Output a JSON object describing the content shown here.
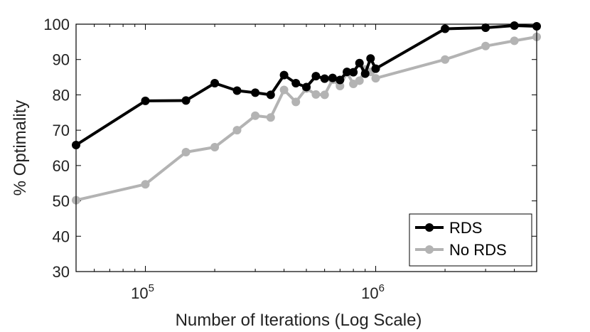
{
  "chart_data": {
    "type": "line",
    "xscale": "log",
    "xlim": [
      50000,
      5000000
    ],
    "ylim": [
      30,
      100
    ],
    "xlabel": "Number of Iterations (Log Scale)",
    "ylabel": "% Optimality",
    "yticks": [
      30,
      40,
      50,
      60,
      70,
      80,
      90,
      100
    ],
    "xticks": [
      {
        "value": 100000,
        "base": "10",
        "exp": "5"
      },
      {
        "value": 1000000,
        "base": "10",
        "exp": "6"
      }
    ],
    "legend_position": "bottom-right",
    "series": [
      {
        "name": "RDS",
        "color": "#000000",
        "points": [
          [
            50000,
            65.8
          ],
          [
            100000,
            78.3
          ],
          [
            150000,
            78.4
          ],
          [
            200000,
            83.3
          ],
          [
            250000,
            81.2
          ],
          [
            300000,
            80.6
          ],
          [
            350000,
            80.0
          ],
          [
            400000,
            85.6
          ],
          [
            450000,
            83.3
          ],
          [
            500000,
            82.2
          ],
          [
            550000,
            85.3
          ],
          [
            600000,
            84.6
          ],
          [
            650000,
            84.8
          ],
          [
            700000,
            84.2
          ],
          [
            750000,
            86.5
          ],
          [
            800000,
            86.4
          ],
          [
            850000,
            89.0
          ],
          [
            900000,
            86.0
          ],
          [
            950000,
            90.3
          ],
          [
            1000000,
            87.4
          ],
          [
            2000000,
            98.7
          ],
          [
            3000000,
            99.0
          ],
          [
            4000000,
            99.6
          ],
          [
            5000000,
            99.4
          ]
        ]
      },
      {
        "name": "No RDS",
        "color": "#b3b3b3",
        "points": [
          [
            50000,
            50.2
          ],
          [
            100000,
            54.7
          ],
          [
            150000,
            63.8
          ],
          [
            200000,
            65.2
          ],
          [
            250000,
            70.0
          ],
          [
            300000,
            74.1
          ],
          [
            350000,
            73.6
          ],
          [
            400000,
            81.4
          ],
          [
            450000,
            78.0
          ],
          [
            500000,
            81.8
          ],
          [
            550000,
            80.1
          ],
          [
            600000,
            80.0
          ],
          [
            650000,
            84.3
          ],
          [
            700000,
            82.5
          ],
          [
            750000,
            86.3
          ],
          [
            800000,
            83.1
          ],
          [
            850000,
            84.0
          ],
          [
            900000,
            87.2
          ],
          [
            950000,
            86.5
          ],
          [
            1000000,
            84.7
          ],
          [
            2000000,
            90.0
          ],
          [
            3000000,
            93.8
          ],
          [
            4000000,
            95.3
          ],
          [
            5000000,
            96.4
          ]
        ]
      }
    ]
  }
}
